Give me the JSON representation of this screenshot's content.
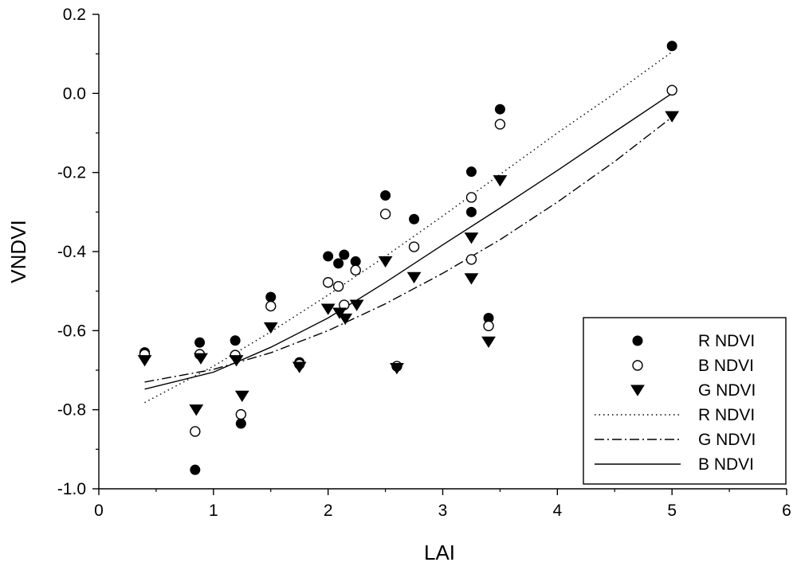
{
  "chart_data": {
    "type": "scatter",
    "xlabel": "LAI",
    "ylabel": "VNDVI",
    "xlim": [
      0,
      6
    ],
    "ylim": [
      -1.0,
      0.2
    ],
    "xticks": [
      "0",
      "1",
      "2",
      "3",
      "4",
      "5",
      "6"
    ],
    "yticks": [
      "-1.0",
      "-0.8",
      "-0.6",
      "-0.4",
      "-0.2",
      "0.0",
      "0.2"
    ],
    "grid": false,
    "legend_position": "bottom-right",
    "series": [
      {
        "name": "R NDVI",
        "marker": "filled-circle",
        "color": "#000000",
        "x": [
          0.4,
          0.84,
          0.88,
          1.19,
          1.24,
          1.5,
          1.75,
          2.0,
          2.09,
          2.14,
          2.24,
          2.5,
          2.75,
          2.6,
          3.25,
          3.25,
          3.4,
          3.5,
          5.0
        ],
        "y": [
          -0.655,
          -0.952,
          -0.63,
          -0.625,
          -0.835,
          -0.515,
          -0.68,
          -0.412,
          -0.43,
          -0.408,
          -0.425,
          -0.258,
          -0.318,
          -0.69,
          -0.198,
          -0.3,
          -0.568,
          -0.04,
          0.12
        ]
      },
      {
        "name": "B NDVI",
        "marker": "open-circle",
        "color": "#000000",
        "x": [
          0.4,
          0.84,
          0.88,
          1.19,
          1.24,
          1.5,
          1.75,
          2.0,
          2.09,
          2.14,
          2.24,
          2.5,
          2.75,
          2.6,
          3.25,
          3.25,
          3.4,
          3.5,
          5.0
        ],
        "y": [
          -0.66,
          -0.855,
          -0.66,
          -0.662,
          -0.812,
          -0.538,
          -0.685,
          -0.478,
          -0.488,
          -0.535,
          -0.447,
          -0.305,
          -0.388,
          -0.69,
          -0.263,
          -0.42,
          -0.588,
          -0.078,
          0.008
        ]
      },
      {
        "name": "G NDVI",
        "marker": "filled-triangle-down",
        "color": "#000000",
        "x": [
          0.4,
          0.85,
          0.89,
          1.2,
          1.25,
          1.5,
          1.75,
          2.0,
          2.1,
          2.15,
          2.25,
          2.5,
          2.75,
          2.6,
          3.25,
          3.25,
          3.4,
          3.5,
          5.0
        ],
        "y": [
          -0.675,
          -0.8,
          -0.67,
          -0.675,
          -0.765,
          -0.592,
          -0.692,
          -0.545,
          -0.555,
          -0.57,
          -0.535,
          -0.425,
          -0.465,
          -0.695,
          -0.365,
          -0.468,
          -0.628,
          -0.22,
          -0.058
        ]
      }
    ],
    "fit_lines": [
      {
        "name": "R NDVI",
        "style": "dotted",
        "x": [
          0.4,
          1.0,
          1.5,
          2.0,
          2.5,
          3.0,
          3.5,
          4.0,
          4.5,
          5.0
        ],
        "y": [
          -0.782,
          -0.69,
          -0.603,
          -0.51,
          -0.412,
          -0.31,
          -0.205,
          -0.1,
          0.0,
          0.105
        ]
      },
      {
        "name": "G NDVI",
        "style": "dash-dot",
        "x": [
          0.4,
          1.0,
          1.5,
          2.0,
          2.5,
          3.0,
          3.5,
          4.0,
          4.5,
          5.0
        ],
        "y": [
          -0.73,
          -0.698,
          -0.656,
          -0.6,
          -0.532,
          -0.455,
          -0.37,
          -0.275,
          -0.172,
          -0.06
        ]
      },
      {
        "name": "B NDVI",
        "style": "solid",
        "x": [
          0.4,
          1.0,
          1.5,
          2.0,
          2.5,
          3.0,
          3.5,
          4.0,
          4.5,
          5.0
        ],
        "y": [
          -0.748,
          -0.705,
          -0.642,
          -0.568,
          -0.478,
          -0.383,
          -0.29,
          -0.195,
          -0.097,
          0.0
        ]
      }
    ],
    "legend": {
      "entries": [
        {
          "label": "R NDVI",
          "symbol": "filled-circle"
        },
        {
          "label": "B NDVI",
          "symbol": "open-circle"
        },
        {
          "label": "G NDVI",
          "symbol": "filled-triangle-down"
        },
        {
          "label": "R NDVI",
          "symbol": "dotted"
        },
        {
          "label": "G NDVI",
          "symbol": "dash-dot"
        },
        {
          "label": "B NDVI",
          "symbol": "solid"
        }
      ]
    }
  }
}
